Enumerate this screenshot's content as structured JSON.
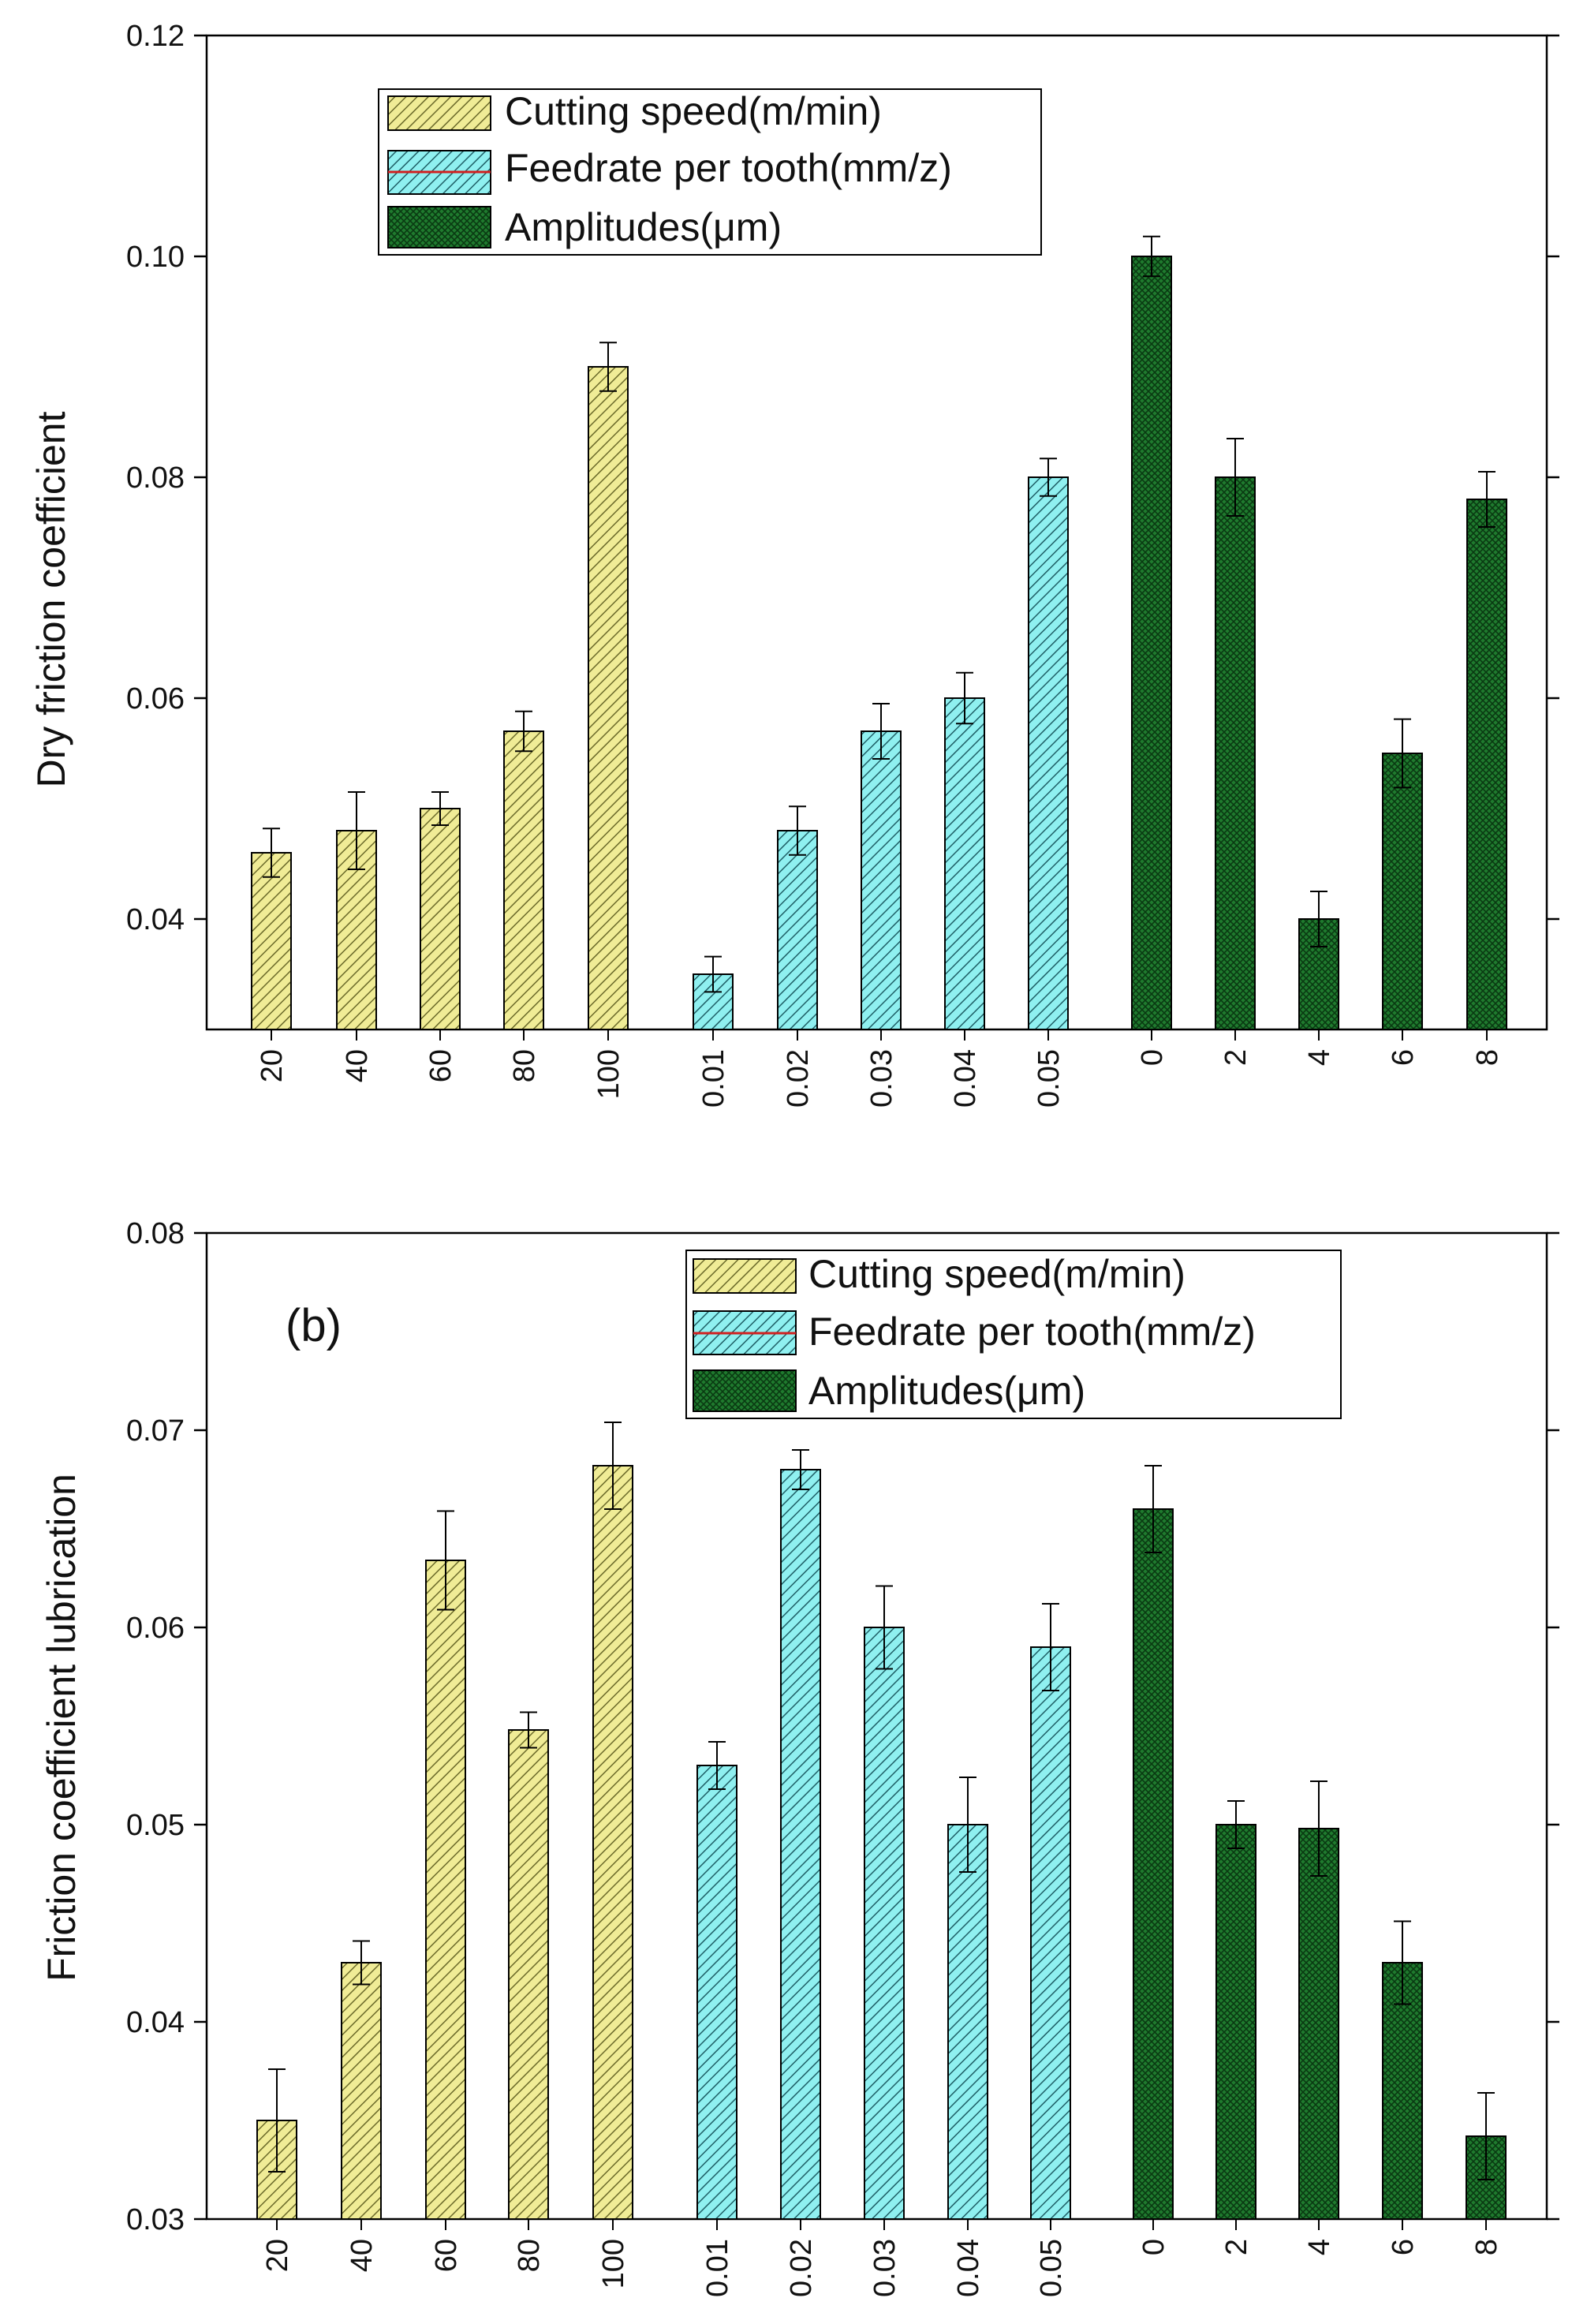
{
  "chart_data": [
    {
      "type": "bar",
      "panel_label": "",
      "ylabel": "Dry friction coefficient",
      "xlabel": "",
      "ylim": [
        0.03,
        0.12
      ],
      "yticks": [
        "0.04",
        "0.06",
        "0.08",
        "0.10",
        "0.12"
      ],
      "grid": false,
      "legend_position": "top-center",
      "series": [
        {
          "name": "Cutting speed(m/min)",
          "color": "#f0ec96",
          "hatch_color": "#6b6a2a",
          "hatch": "diag",
          "categories": [
            "20",
            "40",
            "60",
            "80",
            "100"
          ],
          "values": [
            0.046,
            0.048,
            0.05,
            0.057,
            0.09
          ],
          "errors": [
            0.0022,
            0.0035,
            0.0015,
            0.0018,
            0.0022
          ]
        },
        {
          "name": "Feedrate per tooth(mm/z)",
          "color": "#8ff0f0",
          "hatch_color": "#1f5f66",
          "hatch": "diag",
          "categories": [
            "0.01",
            "0.02",
            "0.03",
            "0.04",
            "0.05"
          ],
          "values": [
            0.035,
            0.048,
            0.057,
            0.06,
            0.08
          ],
          "errors": [
            0.0016,
            0.0022,
            0.0025,
            0.0023,
            0.0017
          ]
        },
        {
          "name": "Amplitudes(μm)",
          "color": "#1f7a2e",
          "hatch_color": "#0a3a12",
          "hatch": "cross",
          "categories": [
            "0",
            "2",
            "4",
            "6",
            "8"
          ],
          "values": [
            0.1,
            0.08,
            0.04,
            0.055,
            0.078
          ],
          "errors": [
            0.0018,
            0.0035,
            0.0025,
            0.0031,
            0.0025
          ]
        }
      ]
    },
    {
      "type": "bar",
      "panel_label": "(b)",
      "ylabel": "Friction coefficient  lubrication",
      "xlabel": "",
      "ylim": [
        0.03,
        0.08
      ],
      "yticks": [
        "0.03",
        "0.04",
        "0.05",
        "0.06",
        "0.07",
        "0.08"
      ],
      "grid": false,
      "legend_position": "top-right",
      "series": [
        {
          "name": "Cutting speed(m/min)",
          "color": "#f0ec96",
          "hatch_color": "#6b6a2a",
          "hatch": "diag",
          "categories": [
            "20",
            "40",
            "60",
            "80",
            "100"
          ],
          "values": [
            0.035,
            0.043,
            0.0634,
            0.0548,
            0.0682
          ],
          "errors": [
            0.0026,
            0.0011,
            0.0025,
            0.0009,
            0.0022
          ]
        },
        {
          "name": "Feedrate per tooth(mm/z)",
          "color": "#8ff0f0",
          "hatch_color": "#1f5f66",
          "hatch": "diag",
          "categories": [
            "0.01",
            "0.02",
            "0.03",
            "0.04",
            "0.05"
          ],
          "values": [
            0.053,
            0.068,
            0.06,
            0.05,
            0.059
          ],
          "errors": [
            0.0012,
            0.001,
            0.0021,
            0.0024,
            0.0022
          ]
        },
        {
          "name": "Amplitudes(μm)",
          "color": "#1f7a2e",
          "hatch_color": "#0a3a12",
          "hatch": "cross",
          "categories": [
            "0",
            "2",
            "4",
            "6",
            "8"
          ],
          "values": [
            0.066,
            0.05,
            0.0498,
            0.043,
            0.0342
          ],
          "errors": [
            0.0022,
            0.0012,
            0.0024,
            0.0021,
            0.0022
          ]
        }
      ]
    }
  ]
}
